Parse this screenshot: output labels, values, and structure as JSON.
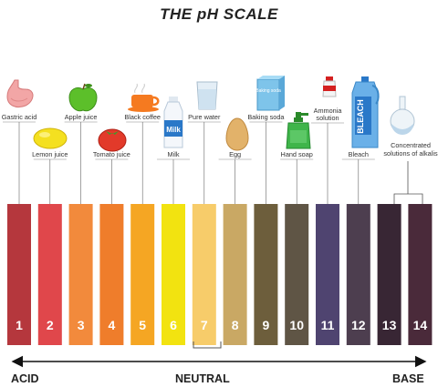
{
  "title": "THE pH SCALE",
  "scale": [
    {
      "ph": "1",
      "color": "#b5373d",
      "item": "Gastric acid",
      "icon": "stomach-icon"
    },
    {
      "ph": "2",
      "color": "#e0474b",
      "item": "Lemon juice",
      "icon": "lemon-icon"
    },
    {
      "ph": "3",
      "color": "#f28a3c",
      "item": "Apple juice",
      "icon": "apple-icon"
    },
    {
      "ph": "4",
      "color": "#ef7d2b",
      "item": "Tomato juice",
      "icon": "tomato-icon"
    },
    {
      "ph": "5",
      "color": "#f5a623",
      "item": "Black coffee",
      "icon": "coffee-cup-icon"
    },
    {
      "ph": "6",
      "color": "#f2e310",
      "item": "Milk",
      "icon": "milk-bottle-icon"
    },
    {
      "ph": "7",
      "color": "#f7cc6a",
      "item": "Pure water",
      "icon": "water-glass-icon"
    },
    {
      "ph": "8",
      "color": "#c9a864",
      "item": "Egg",
      "icon": "egg-icon"
    },
    {
      "ph": "9",
      "color": "#6d5e3c",
      "item": "Baking soda",
      "icon": "baking-soda-box-icon"
    },
    {
      "ph": "10",
      "color": "#5f5545",
      "item": "Hand soap",
      "icon": "soap-dispenser-icon"
    },
    {
      "ph": "11",
      "color": "#4f4470",
      "item": "Ammonia solution",
      "icon": "ammonia-bottle-icon"
    },
    {
      "ph": "12",
      "color": "#4d3e4f",
      "item": "Bleach",
      "icon": "bleach-bottle-icon"
    },
    {
      "ph": "13",
      "color": "#382634",
      "item": "",
      "icon": ""
    },
    {
      "ph": "14",
      "color": "#4a2a3a",
      "item": "",
      "icon": ""
    }
  ],
  "alkali_label_line1": "Concentrated",
  "alkali_label_line2": "solutions of alkalis",
  "alkali_icon": "flask-icon",
  "bleach_bottle_text": "BLEACH",
  "milk_bottle_text": "Milk",
  "baking_soda_text": "Baking soda",
  "axis": {
    "left": "ACID",
    "middle": "NEUTRAL",
    "right": "BASE"
  }
}
